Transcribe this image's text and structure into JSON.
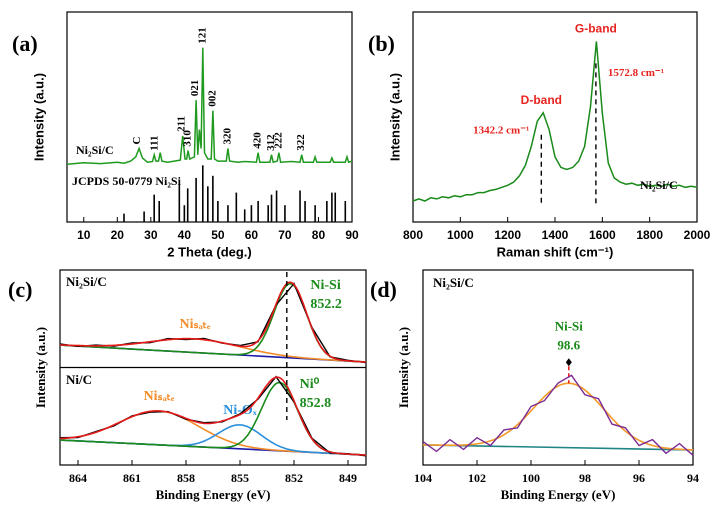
{
  "chart_data": [
    {
      "type": "line",
      "panel": "(a)",
      "xlabel": "2 Theta (deg.)",
      "ylabel": "Intensity (a.u.)",
      "xlim": [
        5,
        90
      ],
      "xticks": [
        10,
        20,
        30,
        40,
        50,
        60,
        70,
        80,
        90
      ],
      "ylim": [
        0,
        100
      ],
      "series": [
        {
          "name": "Ni₂Si/C",
          "color": "#1f9a1f",
          "x": [
            5,
            10,
            15,
            20,
            22,
            24,
            25.5,
            26.5,
            27.5,
            29,
            30.5,
            31,
            31.5,
            32.3,
            32.8,
            33.3,
            35,
            37,
            38.8,
            39.5,
            40.2,
            40.7,
            41.1,
            41.6,
            43,
            43.5,
            44,
            44.5,
            45,
            45.5,
            46,
            47,
            48,
            48.5,
            49,
            50,
            52.5,
            53,
            53.5,
            56,
            58,
            61.5,
            62,
            62.5,
            65.5,
            66,
            66.5,
            67.7,
            68.2,
            68.7,
            72,
            74.5,
            75,
            75.5,
            78.5,
            79,
            79.5,
            83.5,
            84,
            84.5,
            88,
            88.5,
            89,
            90
          ],
          "values": [
            27.5,
            28.2,
            27.8,
            28.5,
            28,
            29,
            31,
            35,
            30.5,
            28.5,
            28.8,
            32,
            29,
            29,
            33,
            29,
            28.5,
            29,
            29.5,
            41,
            30,
            30,
            34,
            30,
            31,
            58,
            32,
            44,
            35,
            83,
            33,
            30,
            30,
            53,
            30,
            29,
            29,
            35,
            29,
            28.5,
            28.8,
            28.5,
            33,
            28.5,
            28.5,
            32,
            28.5,
            29,
            33,
            28.5,
            28.8,
            28.5,
            32,
            28.5,
            28.5,
            31,
            28.5,
            28.5,
            30.5,
            28.5,
            28.5,
            31,
            28.5,
            29
          ]
        }
      ],
      "reference": {
        "name": "JCPDS 50-0779 Ni₂Si",
        "color": "#000000",
        "x": [
          22,
          28,
          31,
          32.5,
          38.5,
          40,
          41,
          43.5,
          45.5,
          47,
          48.5,
          50,
          53,
          55.5,
          58,
          60,
          62,
          65,
          66,
          67.5,
          70,
          74.5,
          76,
          79,
          82.5,
          84,
          85,
          88
        ],
        "values": [
          4,
          5,
          13,
          10,
          18,
          8,
          16,
          21,
          27,
          17,
          22,
          10,
          8,
          14,
          6,
          8,
          10,
          8,
          13,
          15,
          8,
          15,
          10,
          8,
          10,
          14,
          14,
          10
        ]
      },
      "peak_labels": [
        {
          "label": "C",
          "x": 26
        },
        {
          "label": "111",
          "x": 31.3
        },
        {
          "label": "211",
          "x": 39.3
        },
        {
          "label": "310",
          "x": 41.1
        },
        {
          "label": "021",
          "x": 43.3
        },
        {
          "label": "121",
          "x": 45.5
        },
        {
          "label": "002",
          "x": 48.5
        },
        {
          "label": "320",
          "x": 53
        },
        {
          "label": "420",
          "x": 62
        },
        {
          "label": "312",
          "x": 66
        },
        {
          "label": "222",
          "x": 68.2
        },
        {
          "label": "322",
          "x": 75
        }
      ]
    },
    {
      "type": "line",
      "panel": "(b)",
      "xlabel": "Raman shift (cm⁻¹)",
      "ylabel": "Intensity (a.u.)",
      "xlim": [
        800,
        2000
      ],
      "xticks": [
        800,
        1000,
        1200,
        1400,
        1600,
        1800,
        2000
      ],
      "ylim": [
        0,
        100
      ],
      "series": [
        {
          "name": "Ni₂Si/C",
          "color": "#1a8a1a",
          "x": [
            800,
            825,
            850,
            875,
            900,
            925,
            950,
            975,
            1000,
            1025,
            1050,
            1075,
            1100,
            1125,
            1150,
            1175,
            1200,
            1225,
            1250,
            1275,
            1300,
            1325,
            1350,
            1375,
            1400,
            1425,
            1450,
            1475,
            1500,
            1525,
            1550,
            1575,
            1600,
            1625,
            1650,
            1675,
            1700,
            1725,
            1750,
            1775,
            1800,
            1825,
            1850,
            1875,
            1900,
            1925,
            1950,
            1975,
            2000
          ],
          "values": [
            10,
            11,
            10,
            11.5,
            11,
            12,
            11.5,
            12.5,
            12,
            13,
            13,
            14,
            14,
            15,
            15.5,
            16.5,
            17.5,
            19,
            22,
            27,
            36,
            48,
            52,
            44,
            31,
            26,
            25,
            26,
            29,
            36,
            55,
            86,
            52,
            28,
            21,
            19,
            18,
            18.5,
            17.5,
            18,
            17,
            17.5,
            17,
            18,
            17,
            17.5,
            16.5,
            17,
            16.5
          ]
        }
      ],
      "peaks": [
        {
          "name": "D-band",
          "x": 1342.2,
          "label": "1342.2 cm⁻¹"
        },
        {
          "name": "G-band",
          "x": 1572.8,
          "label": "1572.8 cm⁻¹"
        }
      ],
      "label_color": "#e8231f"
    },
    {
      "type": "line",
      "panel": "(c)",
      "xlabel": "Binding Energy (eV)",
      "ylabel": "Intensity (a.u.)",
      "xlim": [
        865,
        848
      ],
      "xticks": [
        864,
        861,
        858,
        855,
        852,
        849
      ],
      "ylim": [
        0,
        100
      ],
      "marker_x": 852.4,
      "samples": [
        {
          "name": "Ni₂Si/C",
          "fit_color": "#e31a1c",
          "x": [
            865,
            864,
            863,
            862,
            861,
            860,
            859,
            858,
            857,
            856,
            855,
            854,
            853,
            852,
            851,
            850,
            849,
            848
          ],
          "raw": {
            "color": "#000000",
            "values": [
              62.1,
              60.8,
              61.5,
              60.9,
              62.6,
              62.7,
              64.8,
              64.3,
              64.9,
              62.5,
              61.3,
              63.2,
              82.0,
              93.0,
              70.5,
              55.5,
              53.7,
              52.5
            ]
          },
          "background": {
            "color": "#1c1ca8",
            "x": [
              865,
              848
            ],
            "values": [
              61.5,
              52.8
            ]
          },
          "components": [
            {
              "name": "Niₛₐₜₑ",
              "color": "#f28c28",
              "center": 857.5,
              "height": 7,
              "width": 2.5
            },
            {
              "name": "Ni-Si",
              "color": "#1a8a1a",
              "peak": 852.2,
              "height": 38,
              "width": 0.9
            }
          ]
        },
        {
          "name": "Ni/C",
          "fit_color": "#e31a1c",
          "x": [
            865,
            864,
            863,
            862,
            861,
            860,
            859,
            858,
            857,
            856,
            855,
            854,
            853,
            852,
            851,
            850,
            849,
            848
          ],
          "raw": {
            "color": "#000000",
            "values": [
              14.0,
              14.1,
              17.2,
              20.1,
              25.2,
              27.1,
              27.4,
              23.5,
              21.7,
              22.1,
              26.2,
              33.8,
              45.3,
              32.3,
              13.7,
              6.2,
              5.8,
              4.7
            ]
          },
          "background": {
            "color": "#1c1ca8",
            "x": [
              865,
              848
            ],
            "values": [
              12.8,
              5.1
            ]
          },
          "components": [
            {
              "name": "Niₛₐₜₑ",
              "color": "#f28c28",
              "center": 859.5,
              "height": 17.4,
              "width": 2.2
            },
            {
              "name": "Ni-Oₓ",
              "color": "#2a8fdc",
              "center": 855,
              "height": 12.3,
              "width": 1.2
            },
            {
              "name": "Ni⁰",
              "color": "#1a8a1a",
              "peak": 852.8,
              "height": 35,
              "width": 1.0
            }
          ]
        }
      ]
    },
    {
      "type": "line",
      "panel": "(d)",
      "title": "Ni₂Si/C",
      "xlabel": "Binding Energy (eV)",
      "ylabel": "Intensity (a.u.)",
      "xlim": [
        104,
        94
      ],
      "xticks": [
        104,
        102,
        100,
        98,
        96,
        94
      ],
      "ylim": [
        0,
        100
      ],
      "marker_color": "#e8231f",
      "samples": [
        {
          "x": [
            104,
            103.5,
            103,
            102.5,
            102,
            101.5,
            101,
            100.5,
            100,
            99.5,
            99,
            98.5,
            98,
            97.5,
            97,
            96.5,
            96,
            95.5,
            95,
            94.5,
            94
          ],
          "raw": {
            "color": "#7b2a92",
            "values": [
              12,
              7,
              13,
              8,
              14,
              10,
              18,
              19,
              30,
              33,
              42,
              46,
              36,
              34,
              21,
              19,
              10,
              13,
              6,
              11,
              5
            ]
          },
          "background": {
            "color": "#208585",
            "x": [
              104,
              94
            ],
            "values": [
              10.3,
              7.7
            ]
          },
          "components": [
            {
              "name": "Ni-Si",
              "color": "#f39a2a",
              "label_color": "#1a8a1a",
              "peak": 98.6,
              "height": 33,
              "width": 1.3
            }
          ]
        }
      ]
    }
  ]
}
